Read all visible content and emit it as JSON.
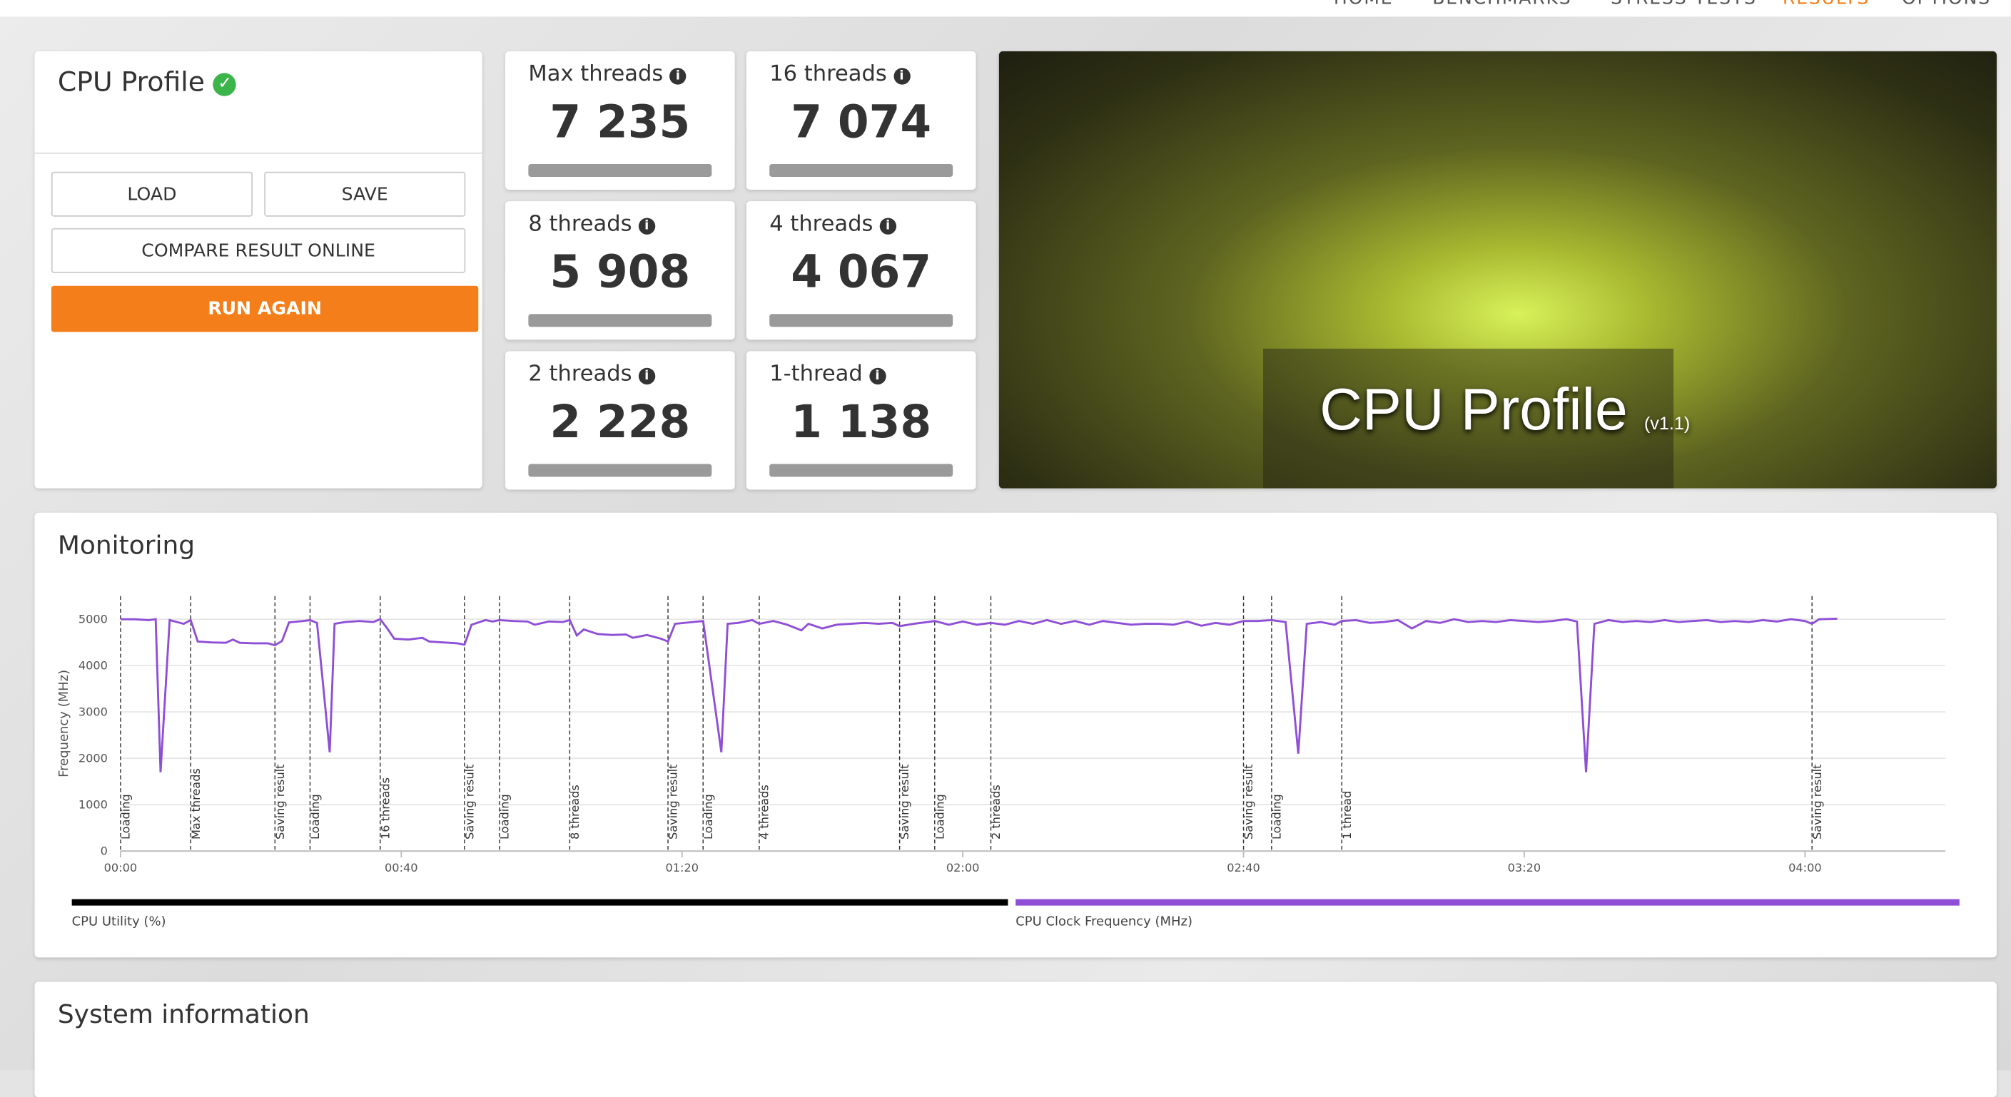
{
  "nav": [
    "HOME",
    "BENCHMARKS",
    "STRESS TESTS",
    "RESULTS",
    "OPTIONS"
  ],
  "profile": {
    "title": "CPU Profile",
    "buttons": [
      "LOAD",
      "SAVE",
      "COMPARE RESULT ONLINE"
    ],
    "run": "RUN AGAIN"
  },
  "scores": [
    {
      "label": "Max threads",
      "score": "7 235"
    },
    {
      "label": "16 threads",
      "score": "7 074"
    },
    {
      "label": "8 threads",
      "score": "5 908"
    },
    {
      "label": "4 threads",
      "score": "4 067"
    },
    {
      "label": "2 threads",
      "score": "2 228"
    },
    {
      "label": "1-thread",
      "score": "1 138"
    }
  ],
  "banner": {
    "title": "CPU Profile",
    "version": "(v1.1)"
  },
  "monitoring": {
    "title": "Monitoring",
    "chart_data": {
      "type": "line",
      "y_label": "Frequency (MHz)",
      "xlim": [
        0,
        260
      ],
      "ylim": [
        0,
        5500
      ],
      "xticks": [
        {
          "value": 0,
          "label": "00:00"
        },
        {
          "value": 40,
          "label": "00:40"
        },
        {
          "value": 80,
          "label": "01:20"
        },
        {
          "value": 120,
          "label": "02:00"
        },
        {
          "value": 160,
          "label": "02:40"
        },
        {
          "value": 200,
          "label": "03:20"
        },
        {
          "value": 240,
          "label": "04:00"
        }
      ],
      "yticks": [
        0,
        1000,
        2000,
        3000,
        4000,
        5000
      ],
      "grid": true,
      "x": [
        0,
        2,
        4,
        5,
        5.7,
        7,
        9,
        10,
        11,
        13,
        15,
        16,
        17,
        19,
        21,
        22,
        23,
        24,
        26,
        27,
        28,
        29.8,
        30.5,
        32,
        34,
        36,
        37,
        38,
        39,
        41,
        43,
        44,
        46,
        48,
        49,
        50,
        52,
        53,
        54,
        56,
        58,
        59,
        61,
        63,
        64,
        65,
        66,
        68,
        70,
        72,
        73,
        75,
        77,
        78,
        79,
        81,
        83,
        85.6,
        86.5,
        88,
        90,
        91,
        93,
        95,
        97,
        98,
        100,
        102,
        104,
        106,
        108,
        110,
        111,
        113,
        115,
        116,
        118,
        120,
        122,
        124,
        126,
        128,
        130,
        132,
        134,
        136,
        138,
        140,
        142,
        144,
        146,
        148,
        150,
        152,
        154,
        156,
        158,
        160,
        162,
        164,
        166,
        167.8,
        169,
        171,
        173,
        174,
        176,
        178,
        180,
        182,
        184,
        186,
        188,
        190,
        192,
        194,
        196,
        198,
        200,
        202,
        204,
        206,
        207.5,
        208.8,
        210,
        212,
        214,
        216,
        218,
        220,
        222,
        224,
        226,
        228,
        230,
        232,
        234,
        236,
        238,
        240,
        241,
        242,
        244.6
      ],
      "series": [
        {
          "name": "CPU Clock Frequency (MHz)",
          "color": "#8e4fd6",
          "values": [
            5000,
            5000,
            4980,
            5000,
            1700,
            4980,
            4900,
            4980,
            4520,
            4500,
            4490,
            4560,
            4490,
            4480,
            4480,
            4440,
            4530,
            4930,
            4960,
            4980,
            4920,
            2130,
            4900,
            4940,
            4960,
            4940,
            5000,
            4800,
            4580,
            4560,
            4600,
            4520,
            4500,
            4480,
            4450,
            4880,
            4980,
            4950,
            4980,
            4960,
            4950,
            4880,
            4950,
            4940,
            4980,
            4650,
            4780,
            4680,
            4660,
            4670,
            4600,
            4660,
            4580,
            4520,
            4900,
            4930,
            4960,
            2130,
            4900,
            4920,
            4980,
            4900,
            4960,
            4880,
            4760,
            4900,
            4800,
            4880,
            4900,
            4920,
            4900,
            4920,
            4850,
            4900,
            4940,
            4960,
            4880,
            4950,
            4880,
            4920,
            4880,
            4960,
            4900,
            4980,
            4900,
            4960,
            4880,
            4960,
            4920,
            4880,
            4900,
            4900,
            4880,
            4950,
            4860,
            4920,
            4880,
            4960,
            4960,
            4980,
            4940,
            2100,
            4900,
            4940,
            4880,
            4960,
            4980,
            4920,
            4940,
            4980,
            4800,
            4960,
            4920,
            5000,
            4940,
            4960,
            4940,
            4980,
            4960,
            4940,
            4960,
            5000,
            4950,
            1700,
            4900,
            4980,
            4940,
            4960,
            4940,
            4980,
            4940,
            4960,
            4980,
            4940,
            4960,
            4940,
            4980,
            4950,
            5000,
            4960,
            4900,
            5000,
            5010
          ]
        }
      ],
      "events": [
        {
          "x": 0,
          "label": "Loading"
        },
        {
          "x": 10,
          "label": "Max threads"
        },
        {
          "x": 22,
          "label": "Saving result"
        },
        {
          "x": 27,
          "label": "Loading"
        },
        {
          "x": 37,
          "label": "16 threads"
        },
        {
          "x": 49,
          "label": "Saving result"
        },
        {
          "x": 54,
          "label": "Loading"
        },
        {
          "x": 64,
          "label": "8 threads"
        },
        {
          "x": 78,
          "label": "Saving result"
        },
        {
          "x": 83,
          "label": "Loading"
        },
        {
          "x": 91,
          "label": "4 threads"
        },
        {
          "x": 111,
          "label": "Saving result"
        },
        {
          "x": 116,
          "label": "Loading"
        },
        {
          "x": 124,
          "label": "2 threads"
        },
        {
          "x": 160,
          "label": "Saving result"
        },
        {
          "x": 164,
          "label": "Loading"
        },
        {
          "x": 174,
          "label": "1 thread"
        },
        {
          "x": 241,
          "label": "Saving result"
        }
      ],
      "legend": [
        {
          "name": "CPU Utility (%)",
          "color": "#000000"
        },
        {
          "name": "CPU Clock Frequency (MHz)",
          "color": "#8e4fd6"
        }
      ]
    }
  },
  "system": {
    "title": "System information"
  }
}
